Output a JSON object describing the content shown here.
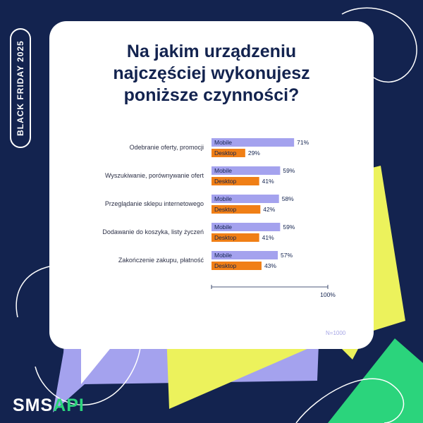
{
  "badge": {
    "text": "BLACK FRIDAY 2025"
  },
  "title": {
    "lines": [
      "Na jakim urządzeniu",
      "najczęściej wykonujesz",
      "poniższe czynności?"
    ]
  },
  "chart_data": {
    "type": "bar",
    "orientation": "horizontal",
    "categories": [
      "Odebranie oferty, promocji",
      "Wyszukiwanie, porównywanie ofert",
      "Przeglądanie sklepu internetowego",
      "Dodawanie do koszyka, listy życzeń",
      "Zakończenie zakupu, płatność"
    ],
    "series": [
      {
        "name": "Mobile",
        "values": [
          71,
          59,
          58,
          59,
          57
        ],
        "color": "#a4a2ee"
      },
      {
        "name": "Desktop",
        "values": [
          29,
          41,
          42,
          41,
          43
        ],
        "color": "#f07f16"
      }
    ],
    "value_suffix": "%",
    "xlim": [
      0,
      100
    ],
    "axis_end_label": "100%"
  },
  "note": "N=1000",
  "logo": {
    "part1": "SMS",
    "part2": "API"
  },
  "colors": {
    "background": "#13234f",
    "lavender": "#a4a2ee",
    "yellow": "#ecf25c",
    "green": "#2bd47c",
    "orange": "#f07f16"
  }
}
